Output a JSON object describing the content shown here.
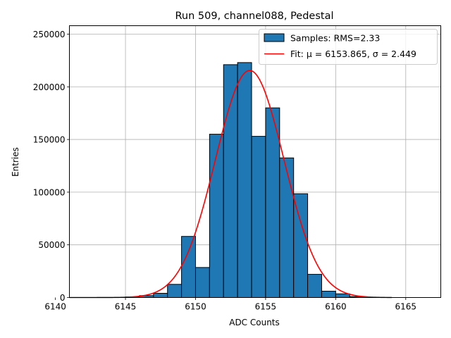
{
  "chart_data": {
    "type": "bar",
    "title": "Run 509, channel088, Pedestal",
    "xlabel": "ADC Counts",
    "ylabel": "Entries",
    "xlim": [
      6141,
      6167.5
    ],
    "ylim": [
      0,
      258000
    ],
    "xticks": [
      6140,
      6145,
      6150,
      6155,
      6160,
      6165
    ],
    "yticks": [
      0,
      50000,
      100000,
      150000,
      200000,
      250000
    ],
    "grid": true,
    "legend_position": "top-right",
    "bin_width": 1,
    "series": [
      {
        "name": "Samples: RMS=2.33",
        "kind": "histogram",
        "color": "#1f77b4",
        "edge_color": "#000000",
        "bins": [
          {
            "x0": 6145,
            "value": 600
          },
          {
            "x0": 6146,
            "value": 1800
          },
          {
            "x0": 6147,
            "value": 4000
          },
          {
            "x0": 6148,
            "value": 12500
          },
          {
            "x0": 6149,
            "value": 58000
          },
          {
            "x0": 6150,
            "value": 28500
          },
          {
            "x0": 6151,
            "value": 155000
          },
          {
            "x0": 6152,
            "value": 221000
          },
          {
            "x0": 6153,
            "value": 223000
          },
          {
            "x0": 6154,
            "value": 153000
          },
          {
            "x0": 6155,
            "value": 180000
          },
          {
            "x0": 6156,
            "value": 132500
          },
          {
            "x0": 6157,
            "value": 98500
          },
          {
            "x0": 6158,
            "value": 22000
          },
          {
            "x0": 6159,
            "value": 6000
          },
          {
            "x0": 6160,
            "value": 3500
          },
          {
            "x0": 6161,
            "value": 900
          },
          {
            "x0": 6162,
            "value": 200
          }
        ]
      },
      {
        "name": "Fit: μ = 6153.865, σ = 2.449",
        "kind": "gaussian-fit",
        "color": "#ff0000",
        "mu": 6153.865,
        "sigma": 2.449,
        "amplitude": 215500,
        "x_range": [
          6141,
          6164
        ]
      }
    ]
  }
}
